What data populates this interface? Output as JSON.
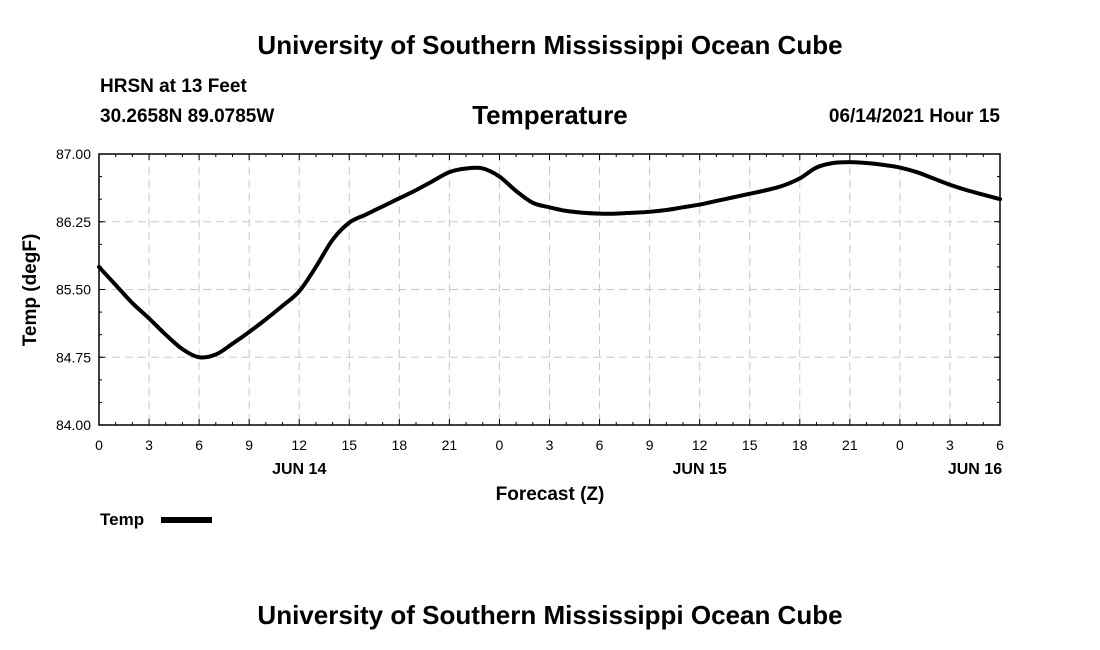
{
  "header": {
    "title_top": "University of Southern Mississippi Ocean Cube",
    "station": "HRSN at 13 Feet",
    "coords": "30.2658N  89.0785W",
    "variable": "Temperature",
    "datetime": "06/14/2021 Hour 15"
  },
  "footer": {
    "title_bottom": "University of Southern Mississippi Ocean Cube"
  },
  "colors": {
    "line": "#000000",
    "grid": "#c8c8c8",
    "background": "#ffffff"
  },
  "chart_data": {
    "type": "line",
    "xlabel": "Forecast (Z)",
    "ylabel": "Temp (degF)",
    "xlim": [
      0,
      54
    ],
    "ylim": [
      84.0,
      87.0
    ],
    "grid": true,
    "x_ticks": [
      0,
      3,
      6,
      9,
      12,
      15,
      18,
      21,
      24,
      27,
      30,
      33,
      36,
      39,
      42,
      45,
      48,
      51,
      54
    ],
    "x_tick_labels": [
      "0",
      "3",
      "6",
      "9",
      "12",
      "15",
      "18",
      "21",
      "0",
      "3",
      "6",
      "9",
      "12",
      "15",
      "18",
      "21",
      "0",
      "3",
      "6"
    ],
    "y_ticks": [
      84.0,
      84.75,
      85.5,
      86.25,
      87.0
    ],
    "y_tick_labels": [
      "84.00",
      "84.75",
      "85.50",
      "86.25",
      "87.00"
    ],
    "date_labels": [
      {
        "x": 12,
        "label": "JUN 14"
      },
      {
        "x": 36,
        "label": "JUN 15"
      },
      {
        "x": 52.5,
        "label": "JUN 16"
      }
    ],
    "legend": {
      "label": "Temp",
      "position": "bottom-left"
    },
    "series": [
      {
        "name": "Temp",
        "x": [
          0,
          1,
          2,
          3,
          4,
          5,
          6,
          7,
          8,
          9,
          10,
          11,
          12,
          13,
          14,
          15,
          16,
          17,
          18,
          19,
          20,
          21,
          22,
          23,
          24,
          25,
          26,
          27,
          28,
          29,
          30,
          31,
          32,
          33,
          34,
          35,
          36,
          37,
          38,
          39,
          40,
          41,
          42,
          43,
          44,
          45,
          46,
          47,
          48,
          49,
          50,
          51,
          52,
          53,
          54
        ],
        "values": [
          85.75,
          85.55,
          85.35,
          85.18,
          85.0,
          84.84,
          84.75,
          84.78,
          84.9,
          85.03,
          85.17,
          85.32,
          85.48,
          85.75,
          86.05,
          86.24,
          86.33,
          86.42,
          86.51,
          86.6,
          86.7,
          86.8,
          86.84,
          86.84,
          86.75,
          86.59,
          86.46,
          86.41,
          86.37,
          86.35,
          86.34,
          86.34,
          86.35,
          86.36,
          86.38,
          86.41,
          86.44,
          86.48,
          86.52,
          86.56,
          86.6,
          86.65,
          86.73,
          86.85,
          86.9,
          86.91,
          86.9,
          86.88,
          86.85,
          86.8,
          86.73,
          86.66,
          86.6,
          86.55,
          86.5
        ]
      }
    ]
  }
}
